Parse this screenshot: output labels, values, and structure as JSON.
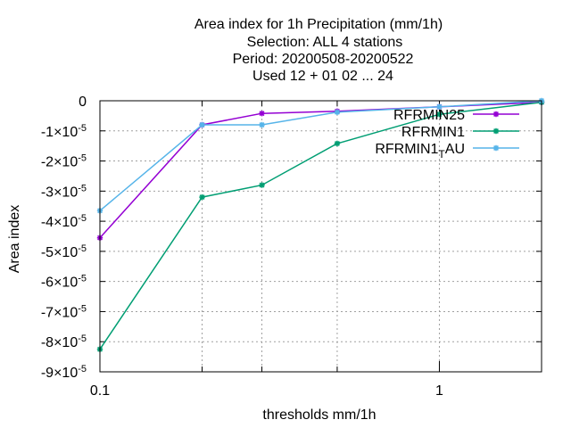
{
  "chart_data": {
    "type": "line",
    "title_lines": [
      "Area index  for 1h Precipitation (mm/1h)",
      "Selection: ALL      4 stations",
      "Period: 20200508-20200522",
      "Used  12 + 01 02 ... 24"
    ],
    "xlabel": "thresholds mm/1h",
    "ylabel": "Area index",
    "x_scale": "log",
    "xlim": [
      0.1,
      2
    ],
    "ylim": [
      -9e-05,
      0
    ],
    "x_tick_labels": [
      {
        "value": 0.1,
        "label": "0.1"
      },
      {
        "value": 1,
        "label": "1"
      }
    ],
    "x_minor_ticks": [
      0.2,
      0.3,
      0.5,
      2
    ],
    "y_ticks": [
      {
        "value": 0,
        "label": "0"
      },
      {
        "value": -1e-05,
        "mant": "-1",
        "exp": "-5"
      },
      {
        "value": -2e-05,
        "mant": "-2",
        "exp": "-5"
      },
      {
        "value": -3e-05,
        "mant": "-3",
        "exp": "-5"
      },
      {
        "value": -4e-05,
        "mant": "-4",
        "exp": "-5"
      },
      {
        "value": -5e-05,
        "mant": "-5",
        "exp": "-5"
      },
      {
        "value": -6e-05,
        "mant": "-6",
        "exp": "-5"
      },
      {
        "value": -7e-05,
        "mant": "-7",
        "exp": "-5"
      },
      {
        "value": -8e-05,
        "mant": "-8",
        "exp": "-5"
      },
      {
        "value": -9e-05,
        "mant": "-9",
        "exp": "-5"
      }
    ],
    "grid": true,
    "legend_position": "top-right",
    "series": [
      {
        "name": "RFRMIN25",
        "color": "#9400d3",
        "x": [
          0.1,
          0.2,
          0.3,
          0.5,
          1,
          2
        ],
        "y": [
          -4.55e-05,
          -8e-06,
          -4.2e-06,
          -3.5e-06,
          -2e-06,
          -5e-07
        ]
      },
      {
        "name": "RFRMIN1",
        "color": "#009e73",
        "x": [
          0.1,
          0.2,
          0.3,
          0.5,
          1,
          2
        ],
        "y": [
          -8.25e-05,
          -3.2e-05,
          -2.8e-05,
          -1.42e-05,
          -4.5e-06,
          -5e-07
        ]
      },
      {
        "name_base": "RFRMIN1",
        "name_sub": "T",
        "name_rest": "AU",
        "color": "#56b4e9",
        "x": [
          0.1,
          0.2,
          0.3,
          0.5,
          1,
          2
        ],
        "y": [
          -3.65e-05,
          -8e-06,
          -8e-06,
          -3.8e-06,
          -2e-06,
          0.0
        ]
      }
    ]
  }
}
